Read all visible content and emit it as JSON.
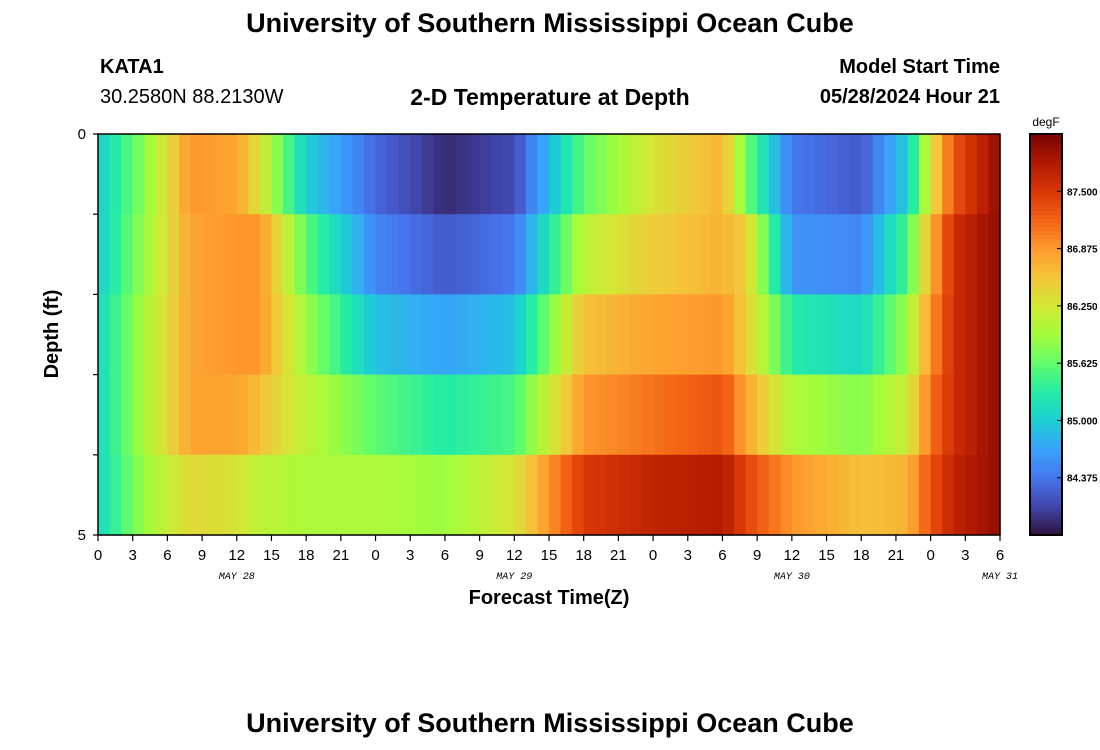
{
  "header": {
    "title": "University of Southern Mississippi Ocean Cube",
    "station": "KATA1",
    "coords": "30.2580N  88.2130W",
    "subtitle": "2-D Temperature at Depth",
    "model_start_label": "Model Start Time",
    "model_start_value": "05/28/2024 Hour 21"
  },
  "footer": {
    "title": "University of Southern Mississippi Ocean Cube"
  },
  "chart_data": {
    "type": "heatmap",
    "title": "2-D Temperature at Depth",
    "xlabel": "Forecast Time(Z)",
    "ylabel": "Depth (ft)",
    "ylim": [
      0,
      5
    ],
    "y_tick_labels": [
      "0",
      "5"
    ],
    "x_tick_labels": [
      "0",
      "3",
      "6",
      "9",
      "12",
      "15",
      "18",
      "21",
      "0",
      "3",
      "6",
      "9",
      "12",
      "15",
      "18",
      "21",
      "0",
      "3",
      "6",
      "9",
      "12",
      "15",
      "18",
      "21",
      "0",
      "3",
      "6"
    ],
    "date_labels": [
      {
        "label": "MAY 28",
        "hour": 12
      },
      {
        "label": "MAY 29",
        "hour": 36
      },
      {
        "label": "MAY 30",
        "hour": 60
      },
      {
        "label": "MAY 31",
        "hour": 78
      }
    ],
    "hours_total": 78,
    "colorbar": {
      "unit": "degF",
      "min": 83.75,
      "max": 88.125,
      "ticks": [
        "87.500",
        "86.875",
        "86.250",
        "85.625",
        "85.000",
        "84.375"
      ],
      "tick_values": [
        87.5,
        86.875,
        86.25,
        85.625,
        85.0,
        84.375
      ],
      "colors": [
        "#30123b",
        "#4145ab",
        "#4675ed",
        "#39a2fc",
        "#1bcfd4",
        "#24eca6",
        "#61fc6c",
        "#a4fc3b",
        "#d1e834",
        "#f3c63a",
        "#fe9b2d",
        "#f36315",
        "#d93806",
        "#b11901",
        "#7a0403"
      ]
    },
    "depth_levels_ft": [
      0.5,
      1.5,
      2.5,
      3.5,
      4.5
    ],
    "temperature_keyframes": [
      {
        "hour": 0,
        "temps_degF": [
          85.0,
          85.0,
          85.1,
          85.1,
          85.1
        ]
      },
      {
        "hour": 4,
        "temps_degF": [
          85.8,
          85.9,
          86.0,
          86.0,
          85.9
        ]
      },
      {
        "hour": 8,
        "temps_degF": [
          86.9,
          86.8,
          86.8,
          86.8,
          86.4
        ]
      },
      {
        "hour": 12,
        "temps_degF": [
          86.8,
          86.9,
          86.9,
          86.8,
          86.3
        ]
      },
      {
        "hour": 14,
        "temps_degF": [
          86.3,
          86.9,
          86.9,
          86.6,
          86.1
        ]
      },
      {
        "hour": 18,
        "temps_degF": [
          85.0,
          85.6,
          85.9,
          86.1,
          86.0
        ]
      },
      {
        "hour": 24,
        "temps_degF": [
          84.3,
          84.5,
          84.9,
          85.6,
          86.0
        ]
      },
      {
        "hour": 30,
        "temps_degF": [
          83.9,
          84.2,
          84.7,
          85.3,
          85.9
        ]
      },
      {
        "hour": 36,
        "temps_degF": [
          84.1,
          84.4,
          84.9,
          85.5,
          86.3
        ]
      },
      {
        "hour": 42,
        "temps_degF": [
          85.6,
          86.1,
          86.6,
          86.9,
          87.5
        ]
      },
      {
        "hour": 48,
        "temps_degF": [
          86.3,
          86.5,
          86.8,
          87.1,
          87.7
        ]
      },
      {
        "hour": 54,
        "temps_degF": [
          86.7,
          86.7,
          86.9,
          87.3,
          87.8
        ]
      },
      {
        "hour": 56,
        "temps_degF": [
          85.7,
          86.5,
          86.5,
          86.8,
          87.4
        ]
      },
      {
        "hour": 60,
        "temps_degF": [
          84.4,
          84.6,
          85.3,
          86.0,
          86.9
        ]
      },
      {
        "hour": 66,
        "temps_degF": [
          84.2,
          84.5,
          85.1,
          85.8,
          86.6
        ]
      },
      {
        "hour": 70,
        "temps_degF": [
          85.0,
          85.5,
          85.9,
          86.2,
          86.7
        ]
      },
      {
        "hour": 72,
        "temps_degF": [
          86.3,
          86.7,
          86.9,
          87.1,
          87.3
        ]
      },
      {
        "hour": 74,
        "temps_degF": [
          87.3,
          87.6,
          87.6,
          87.6,
          87.7
        ]
      },
      {
        "hour": 78,
        "temps_degF": [
          88.0,
          88.0,
          88.0,
          88.0,
          88.0
        ]
      }
    ]
  }
}
